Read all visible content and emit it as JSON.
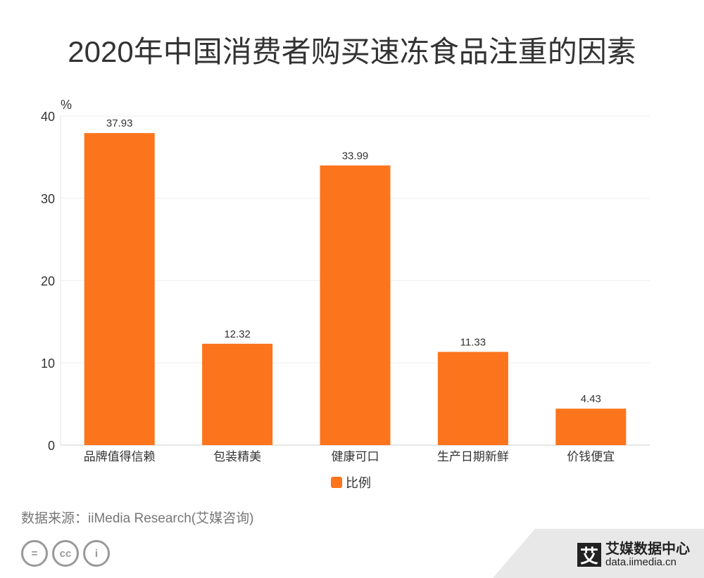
{
  "title": "2020年中国消费者购买速冻食品注重的因素",
  "chart_data": {
    "type": "bar",
    "title": "2020年中国消费者购买速冻食品注重的因素",
    "ylabel": "%",
    "categories": [
      "品牌值得信赖",
      "包装精美",
      "健康可口",
      "生产日期新鲜",
      "价钱便宜"
    ],
    "series": [
      {
        "name": "比例",
        "values": [
          37.93,
          12.32,
          33.99,
          11.33,
          4.43
        ],
        "color": "#fc741c"
      }
    ],
    "ylim": [
      0,
      40
    ],
    "yticks": [
      0,
      10,
      20,
      30,
      40
    ],
    "grid": true,
    "legend": "bottom"
  },
  "source": "数据来源：iiMedia Research(艾媒咨询)",
  "brand": {
    "logo": "艾",
    "name": "艾媒数据中心",
    "url": "data.iimedia.cn"
  },
  "cc_icons": [
    "equals-icon",
    "cc-icon",
    "person-icon"
  ]
}
